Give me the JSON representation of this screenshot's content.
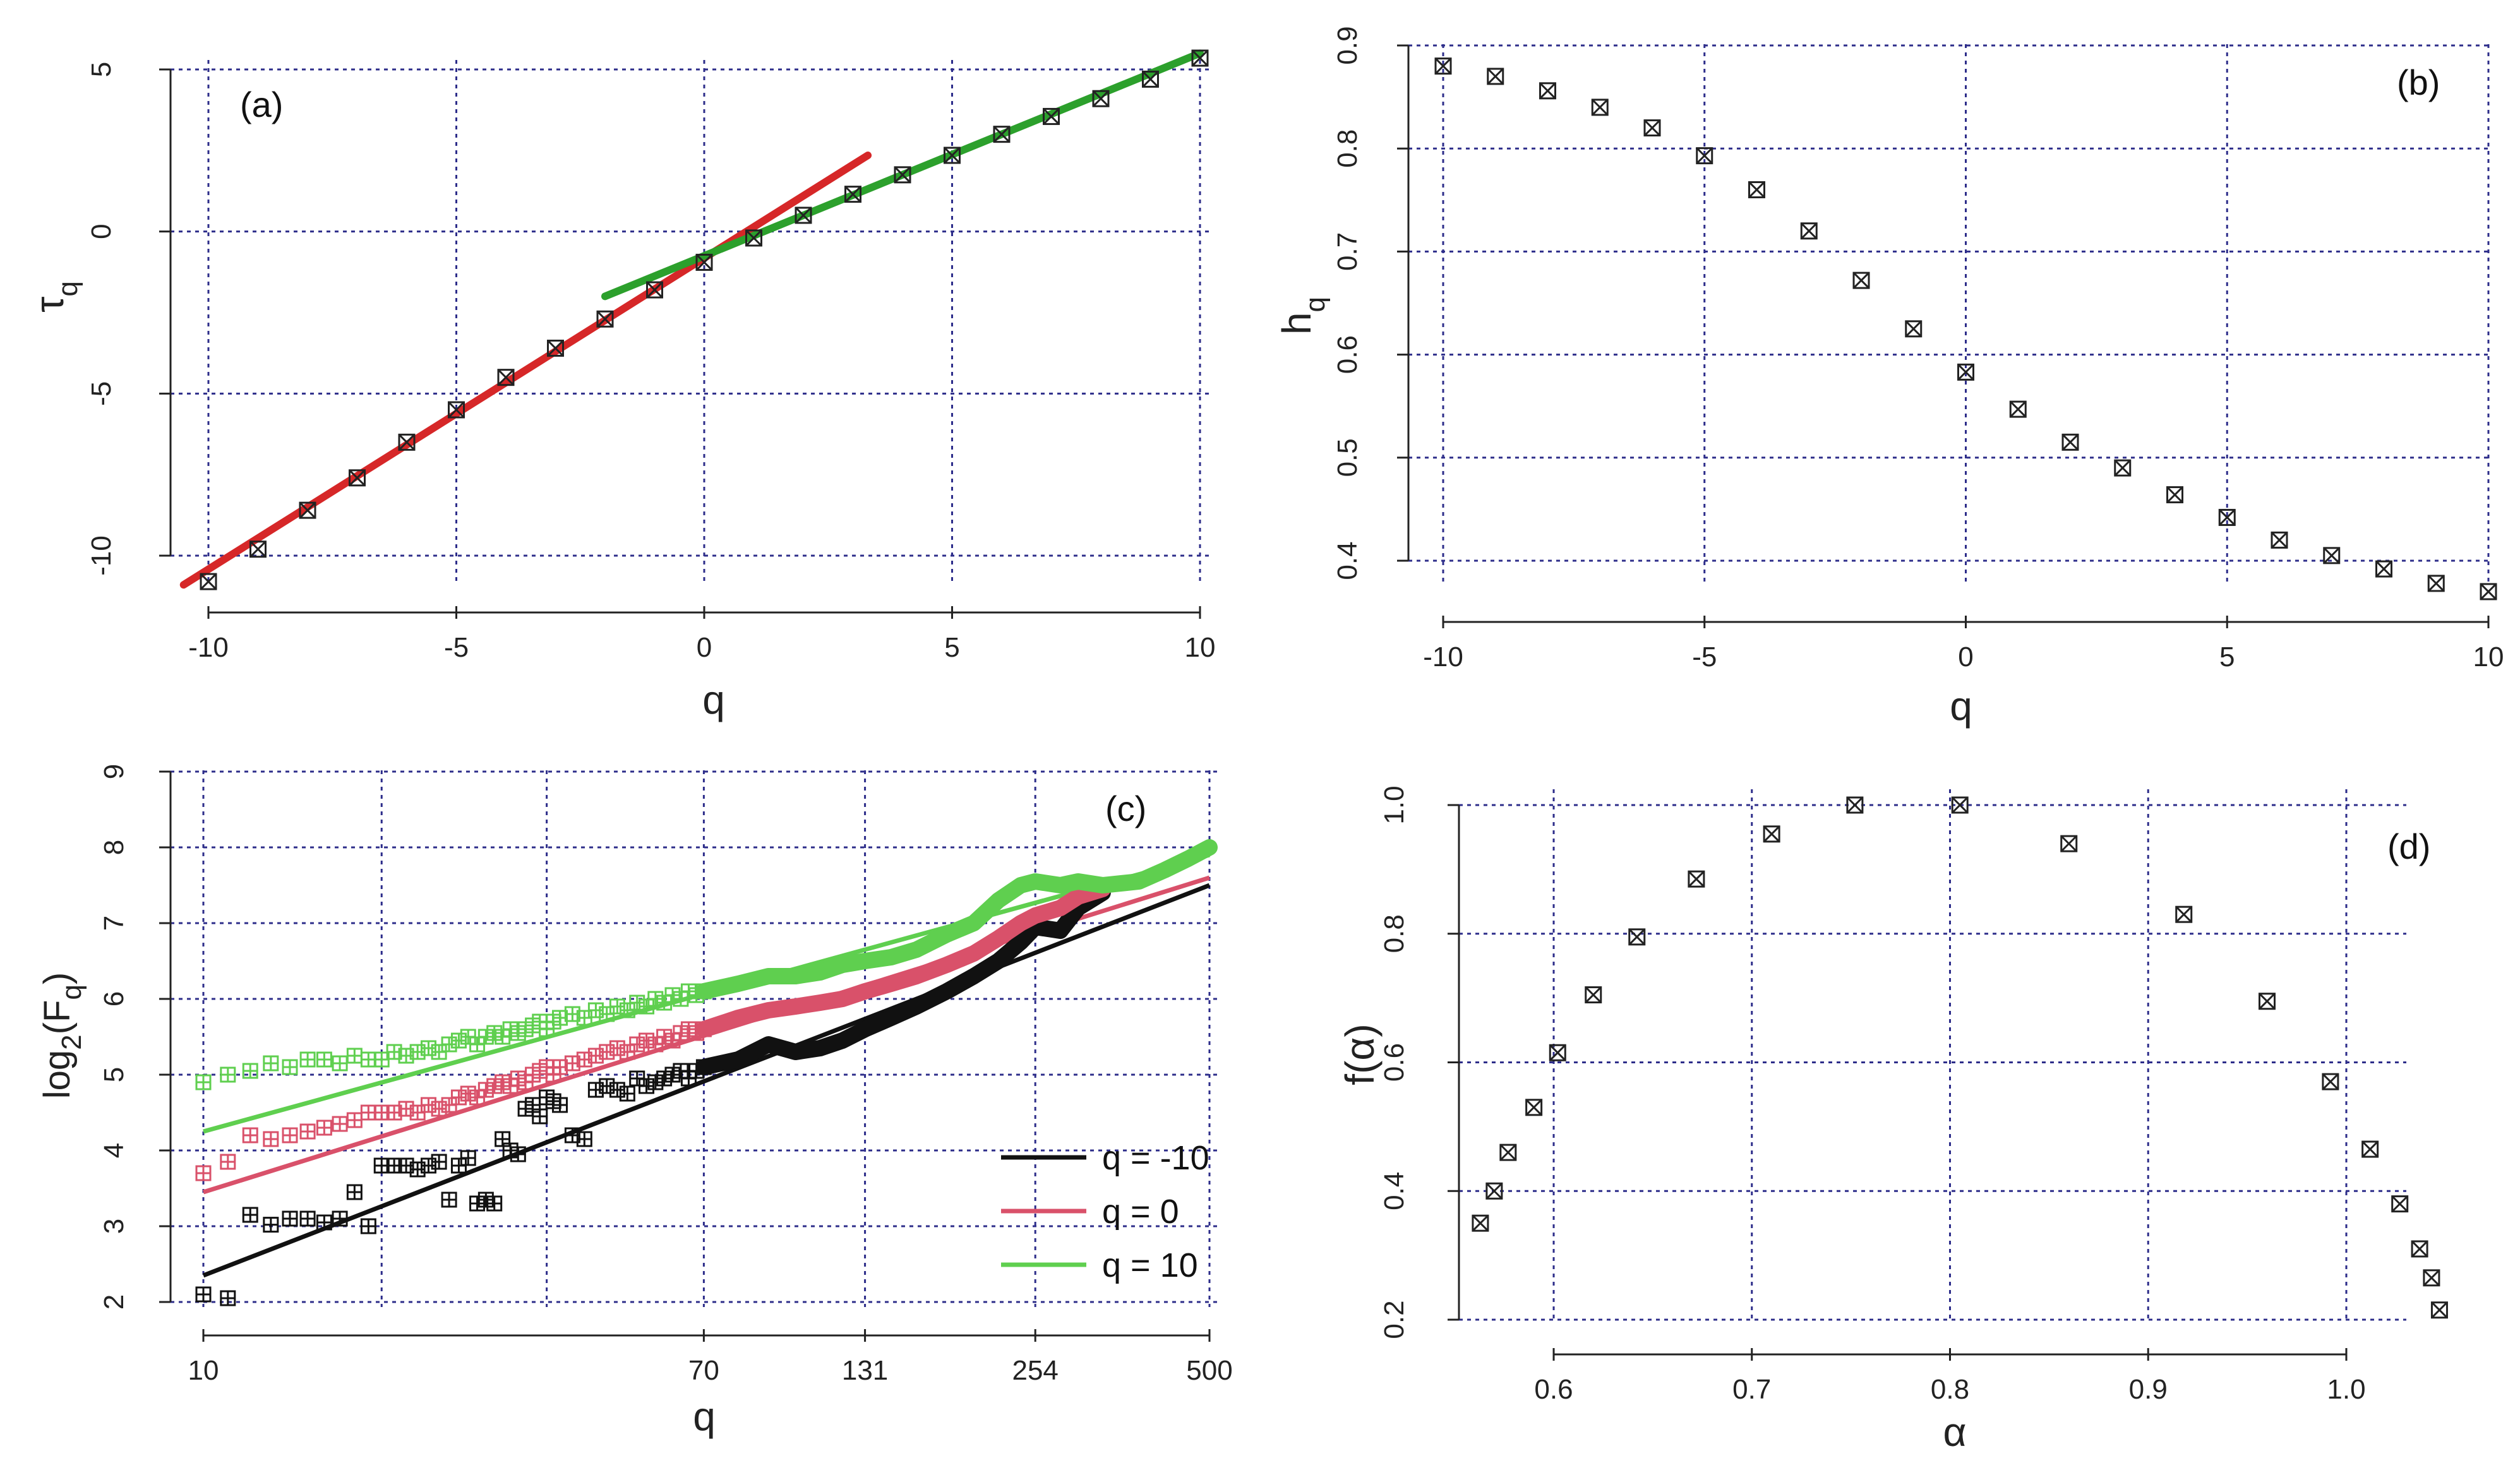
{
  "chart_data": [
    {
      "panel_label": "(a)",
      "type": "scatter",
      "xlabel": "q",
      "ylabel_main": "τ",
      "ylabel_sub": "q",
      "xlim": [
        -10.4,
        10.2
      ],
      "ylim": [
        -10.6,
        5.0
      ],
      "xticks": [
        -10,
        -5,
        0,
        5,
        10
      ],
      "yticks": [
        -10,
        -5,
        0,
        5
      ],
      "points": {
        "x": [
          -10,
          -9,
          -8,
          -7,
          -6,
          -5,
          -4,
          -3,
          -2,
          -1,
          0,
          1,
          2,
          3,
          4,
          5,
          6,
          7,
          8,
          9,
          10
        ],
        "y": [
          -10.8,
          -9.8,
          -8.6,
          -7.6,
          -6.5,
          -5.5,
          -4.5,
          -3.6,
          -2.7,
          -1.8,
          -0.95,
          -0.2,
          0.5,
          1.15,
          1.75,
          2.35,
          3.0,
          3.55,
          4.1,
          4.7,
          5.35
        ]
      },
      "lines": [
        {
          "color": "#d62728",
          "x": [
            -10.5,
            3.3
          ],
          "y": [
            -10.9,
            2.35
          ]
        },
        {
          "color": "#2ca02c",
          "x": [
            -2,
            10
          ],
          "y": [
            -2.0,
            5.5
          ]
        }
      ]
    },
    {
      "panel_label": "(b)",
      "type": "scatter",
      "xlabel": "q",
      "ylabel_main": "h",
      "ylabel_sub": "q",
      "xlim": [
        -10.5,
        10.2
      ],
      "ylim": [
        0.36,
        0.9
      ],
      "xticks": [
        -10,
        -5,
        0,
        5,
        10
      ],
      "yticks": [
        0.4,
        0.5,
        0.6,
        0.7,
        0.8,
        0.9
      ],
      "points": {
        "x": [
          -10,
          -9,
          -8,
          -7,
          -6,
          -5,
          -4,
          -3,
          -2,
          -1,
          0,
          1,
          2,
          3,
          4,
          5,
          6,
          7,
          8,
          9,
          10
        ],
        "y": [
          0.88,
          0.87,
          0.856,
          0.84,
          0.82,
          0.793,
          0.76,
          0.72,
          0.672,
          0.625,
          0.583,
          0.547,
          0.515,
          0.49,
          0.464,
          0.442,
          0.42,
          0.405,
          0.392,
          0.378,
          0.37
        ]
      }
    },
    {
      "panel_label": "(c)",
      "type": "scatter",
      "xlabel": "q",
      "ylabel_main": "log",
      "ylabel_sub": "2",
      "ylabel_rest": "(F",
      "ylabel_sub2": "q",
      "ylabel_end": ")",
      "xlim": [
        10,
        500
      ],
      "ylim": [
        2,
        9
      ],
      "xticks": [
        10,
        70,
        131,
        254,
        500
      ],
      "xgrid_extra": [
        20,
        38
      ],
      "yticks": [
        2,
        3,
        4,
        5,
        6,
        7,
        8,
        9
      ],
      "legend": [
        {
          "label": "q = -10",
          "color": "#111111"
        },
        {
          "label": "q = 0",
          "color": "#d9516a"
        },
        {
          "label": "q = 10",
          "color": "#5fcf4f"
        }
      ],
      "series": [
        {
          "name": "q = -10",
          "color": "#111111",
          "points_x": [
            10,
            11,
            12,
            13,
            14,
            15,
            16,
            17,
            18,
            19,
            20,
            21,
            22,
            23,
            24,
            25,
            26,
            27,
            28,
            29,
            30,
            31,
            32,
            33,
            34,
            35,
            36,
            37,
            38,
            39,
            40,
            42,
            44,
            46,
            48,
            50,
            52,
            54,
            56,
            58,
            60,
            62,
            64,
            66,
            68,
            70
          ],
          "points_y": [
            2.1,
            2.05,
            3.15,
            3.02,
            3.1,
            3.1,
            3.05,
            3.1,
            3.45,
            3.0,
            3.8,
            3.8,
            3.8,
            3.75,
            3.8,
            3.85,
            3.35,
            3.8,
            3.9,
            3.3,
            3.35,
            3.3,
            4.15,
            4.0,
            3.95,
            4.55,
            4.6,
            4.45,
            4.7,
            4.65,
            4.6,
            4.2,
            4.15,
            4.8,
            4.85,
            4.8,
            4.75,
            4.95,
            4.85,
            4.9,
            4.95,
            5.0,
            5.05,
            4.95,
            5.05,
            5.1
          ],
          "line_x": [
            10,
            500
          ],
          "line_y": [
            2.35,
            7.5
          ],
          "thick_x": [
            70,
            80,
            90,
            100,
            110,
            120,
            131,
            145,
            160,
            180,
            200,
            220,
            240,
            254,
            280,
            300,
            330
          ],
          "thick_y": [
            5.1,
            5.2,
            5.4,
            5.3,
            5.35,
            5.45,
            5.6,
            5.75,
            5.9,
            6.1,
            6.3,
            6.5,
            6.75,
            6.95,
            6.9,
            7.2,
            7.4
          ]
        },
        {
          "name": "q = 0",
          "color": "#d9516a",
          "points_x": [
            10,
            11,
            12,
            13,
            14,
            15,
            16,
            17,
            18,
            19,
            20,
            21,
            22,
            23,
            24,
            25,
            26,
            27,
            28,
            29,
            30,
            31,
            32,
            33,
            34,
            35,
            36,
            37,
            38,
            39,
            40,
            42,
            44,
            46,
            48,
            50,
            52,
            54,
            56,
            58,
            60,
            62,
            64,
            66,
            68,
            70
          ],
          "points_y": [
            3.7,
            3.85,
            4.2,
            4.15,
            4.2,
            4.25,
            4.3,
            4.35,
            4.4,
            4.5,
            4.5,
            4.5,
            4.55,
            4.5,
            4.6,
            4.55,
            4.6,
            4.7,
            4.75,
            4.7,
            4.8,
            4.85,
            4.9,
            4.85,
            4.95,
            4.9,
            5.0,
            5.05,
            5.1,
            5.0,
            5.1,
            5.15,
            5.2,
            5.25,
            5.3,
            5.35,
            5.3,
            5.4,
            5.45,
            5.4,
            5.5,
            5.45,
            5.55,
            5.6,
            5.55,
            5.6
          ],
          "line_x": [
            10,
            500
          ],
          "line_y": [
            3.45,
            7.6
          ],
          "thick_x": [
            70,
            80,
            90,
            100,
            110,
            120,
            131,
            145,
            160,
            180,
            200,
            220,
            240,
            254,
            280,
            300,
            330
          ],
          "thick_y": [
            5.6,
            5.75,
            5.85,
            5.9,
            5.95,
            6.0,
            6.1,
            6.2,
            6.3,
            6.45,
            6.6,
            6.8,
            7.0,
            7.1,
            7.2,
            7.35,
            7.45
          ]
        },
        {
          "name": "q = 10",
          "color": "#5fcf4f",
          "points_x": [
            10,
            11,
            12,
            13,
            14,
            15,
            16,
            17,
            18,
            19,
            20,
            21,
            22,
            23,
            24,
            25,
            26,
            27,
            28,
            29,
            30,
            31,
            32,
            33,
            34,
            35,
            36,
            37,
            38,
            39,
            40,
            42,
            44,
            46,
            48,
            50,
            52,
            54,
            56,
            58,
            60,
            62,
            64,
            66,
            68,
            70
          ],
          "points_y": [
            4.9,
            5.0,
            5.05,
            5.15,
            5.1,
            5.2,
            5.2,
            5.15,
            5.25,
            5.2,
            5.2,
            5.3,
            5.25,
            5.3,
            5.35,
            5.3,
            5.4,
            5.45,
            5.5,
            5.4,
            5.5,
            5.55,
            5.5,
            5.6,
            5.55,
            5.6,
            5.65,
            5.7,
            5.6,
            5.7,
            5.75,
            5.8,
            5.75,
            5.85,
            5.8,
            5.9,
            5.85,
            5.95,
            5.9,
            6.0,
            5.95,
            6.05,
            6.0,
            6.1,
            6.05,
            6.1
          ],
          "line_x": [
            10,
            500
          ],
          "line_y": [
            4.25,
            7.9
          ],
          "thick_x": [
            70,
            80,
            90,
            100,
            110,
            120,
            131,
            145,
            160,
            180,
            200,
            220,
            240,
            254,
            280,
            300,
            330,
            380,
            420,
            460,
            500
          ],
          "thick_y": [
            6.1,
            6.2,
            6.3,
            6.3,
            6.35,
            6.45,
            6.5,
            6.55,
            6.65,
            6.85,
            7.0,
            7.3,
            7.5,
            7.55,
            7.5,
            7.55,
            7.5,
            7.55,
            7.7,
            7.85,
            8.0
          ]
        }
      ]
    },
    {
      "panel_label": "(d)",
      "type": "scatter",
      "xlabel": "α",
      "ylabel": "f(α)",
      "xlim": [
        0.545,
        1.06
      ],
      "ylim": [
        0.2,
        1.02
      ],
      "xticks": [
        0.6,
        0.7,
        0.8,
        0.9,
        1.0
      ],
      "xtick_labels": [
        "0.6",
        "0.7",
        "0.8",
        "0.9",
        "1.0"
      ],
      "yticks": [
        0.2,
        0.4,
        0.6,
        0.8,
        1.0
      ],
      "ytick_labels": [
        "0.2",
        "0.4",
        "0.6",
        "0.8",
        "1.0"
      ],
      "points": {
        "x": [
          0.563,
          0.57,
          0.577,
          0.59,
          0.602,
          0.62,
          0.642,
          0.672,
          0.71,
          0.752,
          0.805,
          0.86,
          0.918,
          0.96,
          0.992,
          1.012,
          1.027,
          1.037,
          1.043,
          1.047
        ],
        "y": [
          0.35,
          0.4,
          0.46,
          0.53,
          0.615,
          0.705,
          0.795,
          0.885,
          0.955,
          1.0,
          1.0,
          0.94,
          0.83,
          0.695,
          0.57,
          0.465,
          0.38,
          0.31,
          0.265,
          0.215
        ]
      }
    }
  ]
}
